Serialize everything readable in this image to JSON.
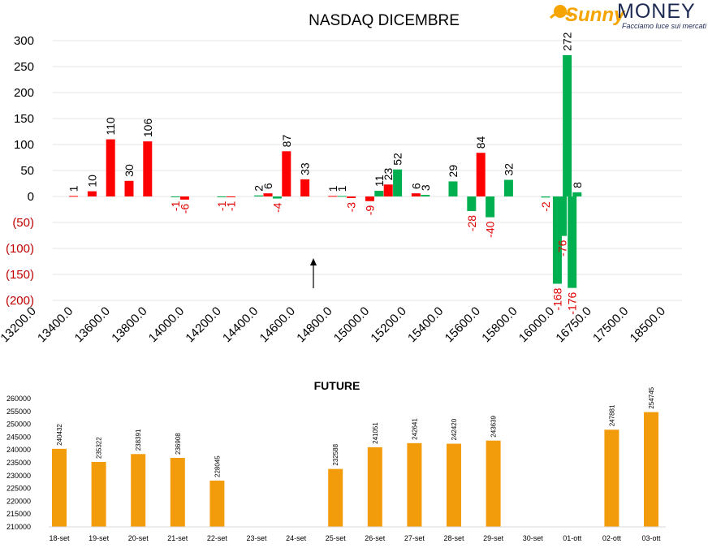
{
  "logo": {
    "brand_part1": "Sunny",
    "brand_part2": "MONEY",
    "tagline": "Facciamo luce sui mercati",
    "color_sun": "#f5a400",
    "color_brand": "#1d2a52"
  },
  "chart_data": [
    {
      "type": "bar",
      "title": "NASDAQ DICEMBRE",
      "ylim": [
        -200,
        300
      ],
      "yticks": [
        "300",
        "250",
        "200",
        "150",
        "100",
        "50",
        "0",
        "(50)",
        "(100)",
        "(150)",
        "(200)"
      ],
      "ytick_values": [
        300,
        250,
        200,
        150,
        100,
        50,
        0,
        -50,
        -100,
        -150,
        -200
      ],
      "x_tick_labels": [
        "13200.0",
        "13400.0",
        "13600.0",
        "13800.0",
        "14000.0",
        "14200.0",
        "14400.0",
        "14600.0",
        "14800.0",
        "15000.0",
        "15200.0",
        "15400.0",
        "15600.0",
        "15800.0",
        "16000.0",
        "16750.0",
        "17500.0",
        "18500.0"
      ],
      "series": [
        {
          "color": "#ff0000",
          "bars": [
            {
              "x": 13400.0,
              "value": 1
            },
            {
              "x": 13500.0,
              "value": 10
            },
            {
              "x": 13600.0,
              "value": 110
            },
            {
              "x": 13700.0,
              "value": 30
            },
            {
              "x": 13800.0,
              "value": 106
            },
            {
              "x": 14000.0,
              "value": -6
            },
            {
              "x": 14250.0,
              "value": -1
            },
            {
              "x": 14450.0,
              "value": 6
            },
            {
              "x": 14550.0,
              "value": 87
            },
            {
              "x": 14650.0,
              "value": 33
            },
            {
              "x": 14800.0,
              "value": 1
            },
            {
              "x": 14900.0,
              "value": -3
            },
            {
              "x": 15000.0,
              "value": -9
            },
            {
              "x": 15100.0,
              "value": 23
            },
            {
              "x": 15250.0,
              "value": 6
            },
            {
              "x": 15600.0,
              "value": 84
            }
          ]
        },
        {
          "color": "#00b050",
          "bars": [
            {
              "x": 13950.0,
              "value": -1
            },
            {
              "x": 14200.0,
              "value": -1
            },
            {
              "x": 14400.0,
              "value": 2
            },
            {
              "x": 14500.0,
              "value": -4
            },
            {
              "x": 14850.0,
              "value": 1
            },
            {
              "x": 15050.0,
              "value": 11
            },
            {
              "x": 15150.0,
              "value": 52
            },
            {
              "x": 15300.0,
              "value": 3
            },
            {
              "x": 15450.0,
              "value": 29
            },
            {
              "x": 15550.0,
              "value": -28
            },
            {
              "x": 15650.0,
              "value": -40
            },
            {
              "x": 15750.0,
              "value": 32
            },
            {
              "x": 15950.0,
              "value": -2
            },
            {
              "x": 16050.0,
              "value": -168
            },
            {
              "x": 16150.0,
              "value": -76
            },
            {
              "x": 16250.0,
              "value": 272
            },
            {
              "x": 16350.0,
              "value": -176
            },
            {
              "x": 16450.0,
              "value": 8
            }
          ]
        }
      ],
      "grid": true,
      "annotation": "arrow-up"
    },
    {
      "type": "bar",
      "title": "FUTURE",
      "ylim": [
        210000,
        260000
      ],
      "yticks": [
        "260000",
        "255000",
        "250000",
        "245000",
        "240000",
        "235000",
        "230000",
        "225000",
        "220000",
        "215000",
        "210000"
      ],
      "ytick_values": [
        260000,
        255000,
        250000,
        245000,
        240000,
        235000,
        230000,
        225000,
        220000,
        215000,
        210000
      ],
      "categories": [
        "18-set",
        "19-set",
        "20-set",
        "21-set",
        "22-set",
        "23-set",
        "24-set",
        "25-set",
        "26-set",
        "27-set",
        "28-set",
        "29-set",
        "30-set",
        "01-ott",
        "02-ott",
        "03-ott"
      ],
      "values": [
        240432,
        235322,
        238391,
        236908,
        228045,
        null,
        null,
        232588,
        241051,
        242641,
        242420,
        243639,
        null,
        null,
        247881,
        254745
      ],
      "value_labels": [
        "240432",
        "235322",
        "238391",
        "236908",
        "228045",
        "",
        "",
        "232588",
        "241051",
        "242641",
        "242420",
        "243639",
        "",
        "",
        "247881",
        "254745"
      ],
      "color": "#f39c0b",
      "grid": false
    }
  ]
}
